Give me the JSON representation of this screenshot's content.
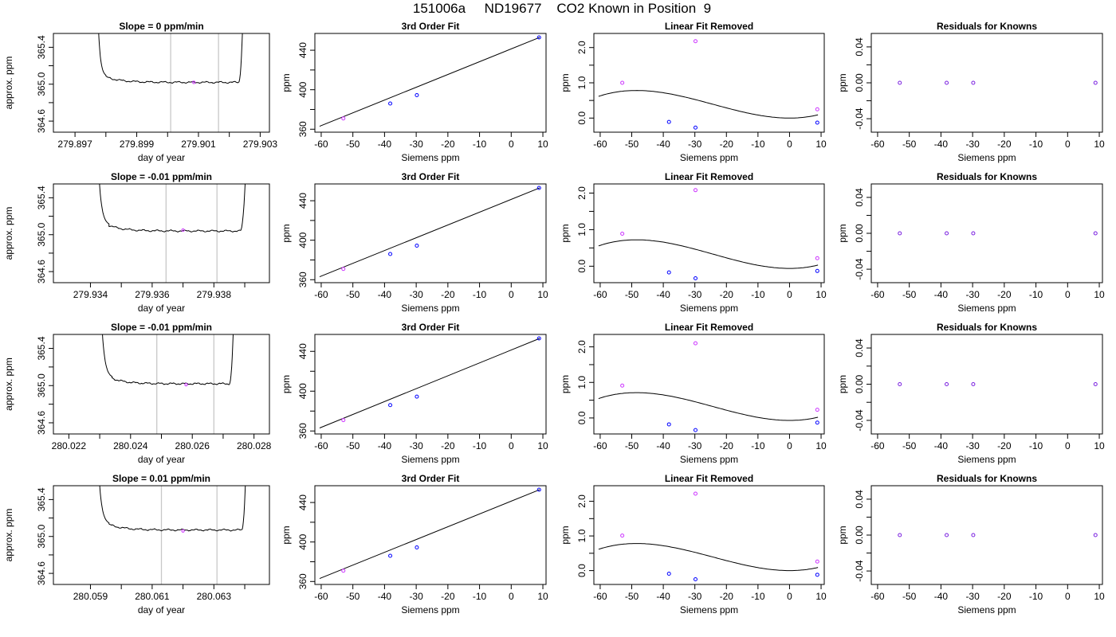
{
  "figure_title": "151006a     ND19677    CO2 Known in Position  9",
  "colors": {
    "blue": "#0000ff",
    "magenta": "#cc33ff",
    "purple": "#7a1fe0",
    "ref_line": "#c8c8c8",
    "ink": "#000000"
  },
  "chart_data": [
    {
      "row": 1,
      "type": "line",
      "title": "Slope =  0  ppm/min",
      "xlabel": "day of year",
      "ylabel": "approx. ppm",
      "xlim": [
        279.8963,
        279.9033
      ],
      "ylim": [
        364.48,
        365.55
      ],
      "xticks": [
        279.897,
        279.899,
        279.901,
        279.903
      ],
      "xtick_labels": [
        "279.897",
        "279.899",
        "279.901",
        "279.903"
      ],
      "yticks": [
        364.6,
        365.0,
        365.4
      ],
      "ytick_labels": [
        "364.6",
        "365.0",
        "365.4"
      ],
      "ref_lines_x": [
        279.9001,
        279.90165
      ],
      "series_start": 279.8977,
      "series_end": 279.90245,
      "plateau_start": 279.898,
      "plateau_end": 279.9023,
      "plateau_level": 365.02,
      "marker": {
        "x": 279.90085,
        "y": 365.02,
        "color": "#cc33ff"
      }
    },
    {
      "row": 1,
      "type": "scatter",
      "title": "3rd Order Fit",
      "xlabel": "Siemens ppm",
      "ylabel": "ppm",
      "xlim": [
        -62,
        11
      ],
      "ylim": [
        357,
        457
      ],
      "xticks": [
        -60,
        -50,
        -40,
        -30,
        -20,
        -10,
        0,
        10
      ],
      "xtick_labels": [
        "-60",
        "-50",
        "-40",
        "-30",
        "-20",
        "-10",
        "0",
        "10"
      ],
      "yticks": [
        360,
        400,
        440
      ],
      "ytick_labels": [
        "360",
        "400",
        "440"
      ],
      "points": [
        {
          "x": -53,
          "y": 370.9,
          "color": "#cc33ff"
        },
        {
          "x": -38.2,
          "y": 386.0,
          "color": "#0000ff"
        },
        {
          "x": -29.8,
          "y": 394.5,
          "color": "#0000ff"
        },
        {
          "x": 8.8,
          "y": 453.0,
          "color": "#0000ff"
        }
      ],
      "fit_line": {
        "x": [
          -60.5,
          9
        ],
        "y": [
          363.0,
          453.0
        ]
      }
    },
    {
      "row": 1,
      "type": "scatter",
      "title": "Linear Fit Removed",
      "xlabel": "Siemens ppm",
      "ylabel": "ppm",
      "xlim": [
        -62,
        11
      ],
      "ylim": [
        -0.4,
        2.4
      ],
      "xticks": [
        -60,
        -50,
        -40,
        -30,
        -20,
        -10,
        0,
        10
      ],
      "xtick_labels": [
        "-60",
        "-50",
        "-40",
        "-30",
        "-20",
        "-10",
        "0",
        "10"
      ],
      "yticks": [
        0.0,
        1.0,
        2.0
      ],
      "ytick_labels": [
        "0.0",
        "1.0",
        "2.0"
      ],
      "points": [
        {
          "x": -53,
          "y": 1.0,
          "color": "#cc33ff"
        },
        {
          "x": -38.2,
          "y": -0.11,
          "color": "#0000ff"
        },
        {
          "x": -29.8,
          "y": -0.27,
          "color": "#0000ff"
        },
        {
          "x": -29.8,
          "y": 2.18,
          "color": "#cc33ff"
        },
        {
          "x": 8.8,
          "y": 0.25,
          "color": "#cc33ff"
        },
        {
          "x": 8.8,
          "y": -0.13,
          "color": "#0000ff"
        }
      ],
      "curve": {
        "x_from": -60.5,
        "x_to": 9,
        "a": 1.37e-05,
        "b": 0.000997,
        "c": 0,
        "d": 0
      }
    },
    {
      "row": 1,
      "type": "scatter",
      "title": "Residuals for Knowns",
      "xlabel": "Siemens ppm",
      "ylabel": "ppm",
      "xlim": [
        -62,
        11
      ],
      "ylim": [
        -0.055,
        0.055
      ],
      "xticks": [
        -60,
        -50,
        -40,
        -30,
        -20,
        -10,
        0,
        10
      ],
      "xtick_labels": [
        "-60",
        "-50",
        "-40",
        "-30",
        "-20",
        "-10",
        "0",
        "10"
      ],
      "yticks": [
        -0.04,
        0.0,
        0.04
      ],
      "ytick_labels": [
        "-0.04",
        "0.00",
        "0.04"
      ],
      "points": [
        {
          "x": -53,
          "y": 0,
          "color": "#7a1fe0"
        },
        {
          "x": -38.2,
          "y": 0,
          "color": "#7a1fe0"
        },
        {
          "x": -29.8,
          "y": 0,
          "color": "#7a1fe0"
        },
        {
          "x": 8.8,
          "y": 0,
          "color": "#7a1fe0"
        }
      ]
    },
    {
      "row": 2,
      "type": "line",
      "title": "Slope =  -0.01  ppm/min",
      "xlabel": "day of year",
      "ylabel": "approx. ppm",
      "xlim": [
        279.9328,
        279.9398
      ],
      "ylim": [
        364.48,
        365.55
      ],
      "xticks": [
        279.934,
        279.936,
        279.938
      ],
      "xtick_labels": [
        "279.934",
        "279.936",
        "279.938"
      ],
      "yticks": [
        364.6,
        365.0,
        365.4
      ],
      "ytick_labels": [
        "364.6",
        "365.0",
        "365.4"
      ],
      "ref_lines_x": [
        279.93645,
        279.9381
      ],
      "series_start": 279.9342,
      "series_end": 279.93905,
      "plateau_start": 279.9346,
      "plateau_end": 279.93885,
      "plateau_level": 365.04,
      "marker": {
        "x": 279.937,
        "y": 365.05,
        "color": "#cc33ff"
      }
    },
    {
      "row": 2,
      "type": "scatter",
      "title": "3rd Order Fit",
      "xlabel": "Siemens ppm",
      "ylabel": "ppm",
      "xlim": [
        -62,
        11
      ],
      "ylim": [
        357,
        457
      ],
      "xticks": [
        -60,
        -50,
        -40,
        -30,
        -20,
        -10,
        0,
        10
      ],
      "xtick_labels": [
        "-60",
        "-50",
        "-40",
        "-30",
        "-20",
        "-10",
        "0",
        "10"
      ],
      "yticks": [
        360,
        400,
        440
      ],
      "ytick_labels": [
        "360",
        "400",
        "440"
      ],
      "points": [
        {
          "x": -53,
          "y": 370.9,
          "color": "#cc33ff"
        },
        {
          "x": -38.2,
          "y": 386.0,
          "color": "#0000ff"
        },
        {
          "x": -29.8,
          "y": 394.5,
          "color": "#0000ff"
        },
        {
          "x": 8.8,
          "y": 453.0,
          "color": "#0000ff"
        }
      ],
      "fit_line": {
        "x": [
          -60.5,
          9
        ],
        "y": [
          363.0,
          453.0
        ]
      }
    },
    {
      "row": 2,
      "type": "scatter",
      "title": "Linear Fit Removed",
      "xlabel": "Siemens ppm",
      "ylabel": "ppm",
      "xlim": [
        -62,
        11
      ],
      "ylim": [
        -0.45,
        2.25
      ],
      "xticks": [
        -60,
        -50,
        -40,
        -30,
        -20,
        -10,
        0,
        10
      ],
      "xtick_labels": [
        "-60",
        "-50",
        "-40",
        "-30",
        "-20",
        "-10",
        "0",
        "10"
      ],
      "yticks": [
        0.0,
        1.0,
        2.0
      ],
      "ytick_labels": [
        "0.0",
        "1.0",
        "2.0"
      ],
      "points": [
        {
          "x": -53,
          "y": 0.89,
          "color": "#cc33ff"
        },
        {
          "x": -38.2,
          "y": -0.17,
          "color": "#0000ff"
        },
        {
          "x": -29.8,
          "y": -0.33,
          "color": "#0000ff"
        },
        {
          "x": -29.8,
          "y": 2.08,
          "color": "#cc33ff"
        },
        {
          "x": 8.8,
          "y": 0.22,
          "color": "#cc33ff"
        },
        {
          "x": 8.8,
          "y": -0.13,
          "color": "#0000ff"
        }
      ],
      "curve": {
        "x_from": -60.5,
        "x_to": 9,
        "a": 1.37e-05,
        "b": 0.000997,
        "c": 0,
        "d": -0.06
      }
    },
    {
      "row": 2,
      "type": "scatter",
      "title": "Residuals for Knowns",
      "xlabel": "Siemens ppm",
      "ylabel": "ppm",
      "xlim": [
        -62,
        11
      ],
      "ylim": [
        -0.055,
        0.055
      ],
      "xticks": [
        -60,
        -50,
        -40,
        -30,
        -20,
        -10,
        0,
        10
      ],
      "xtick_labels": [
        "-60",
        "-50",
        "-40",
        "-30",
        "-20",
        "-10",
        "0",
        "10"
      ],
      "yticks": [
        -0.04,
        0.0,
        0.04
      ],
      "ytick_labels": [
        "-0.04",
        "0.00",
        "0.04"
      ],
      "points": [
        {
          "x": -53,
          "y": 0,
          "color": "#7a1fe0"
        },
        {
          "x": -38.2,
          "y": 0,
          "color": "#7a1fe0"
        },
        {
          "x": -29.8,
          "y": 0,
          "color": "#7a1fe0"
        },
        {
          "x": 8.8,
          "y": 0,
          "color": "#7a1fe0"
        }
      ]
    },
    {
      "row": 3,
      "type": "line",
      "title": "Slope =  -0.01  ppm/min",
      "xlabel": "day of year",
      "ylabel": "approx. ppm",
      "xlim": [
        280.0215,
        280.0285
      ],
      "ylim": [
        364.48,
        365.55
      ],
      "xticks": [
        280.022,
        280.024,
        280.026,
        280.028
      ],
      "xtick_labels": [
        "280.022",
        "280.024",
        "280.026",
        "280.028"
      ],
      "yticks": [
        364.6,
        365.0,
        365.4
      ],
      "ytick_labels": [
        "364.6",
        "365.0",
        "365.4"
      ],
      "ref_lines_x": [
        280.02485,
        280.0267
      ],
      "series_start": 280.023,
      "series_end": 280.02735,
      "plateau_start": 280.0234,
      "plateau_end": 280.0272,
      "plateau_level": 365.02,
      "marker": {
        "x": 280.0258,
        "y": 365.01,
        "color": "#cc33ff"
      }
    },
    {
      "row": 3,
      "type": "scatter",
      "title": "3rd Order Fit",
      "xlabel": "Siemens ppm",
      "ylabel": "ppm",
      "xlim": [
        -62,
        11
      ],
      "ylim": [
        357,
        457
      ],
      "xticks": [
        -60,
        -50,
        -40,
        -30,
        -20,
        -10,
        0,
        10
      ],
      "xtick_labels": [
        "-60",
        "-50",
        "-40",
        "-30",
        "-20",
        "-10",
        "0",
        "10"
      ],
      "yticks": [
        360,
        400,
        440
      ],
      "ytick_labels": [
        "360",
        "400",
        "440"
      ],
      "points": [
        {
          "x": -53,
          "y": 370.9,
          "color": "#cc33ff"
        },
        {
          "x": -38.2,
          "y": 386.0,
          "color": "#0000ff"
        },
        {
          "x": -29.8,
          "y": 394.5,
          "color": "#0000ff"
        },
        {
          "x": 8.8,
          "y": 453.0,
          "color": "#0000ff"
        }
      ],
      "fit_line": {
        "x": [
          -60.5,
          9
        ],
        "y": [
          363.0,
          453.0
        ]
      }
    },
    {
      "row": 3,
      "type": "scatter",
      "title": "Linear Fit Removed",
      "xlabel": "Siemens ppm",
      "ylabel": "ppm",
      "xlim": [
        -62,
        11
      ],
      "ylim": [
        -0.45,
        2.35
      ],
      "xticks": [
        -60,
        -50,
        -40,
        -30,
        -20,
        -10,
        0,
        10
      ],
      "xtick_labels": [
        "-60",
        "-50",
        "-40",
        "-30",
        "-20",
        "-10",
        "0",
        "10"
      ],
      "yticks": [
        0.0,
        1.0,
        2.0
      ],
      "ytick_labels": [
        "0.0",
        "1.0",
        "2.0"
      ],
      "points": [
        {
          "x": -53,
          "y": 0.91,
          "color": "#cc33ff"
        },
        {
          "x": -38.2,
          "y": -0.18,
          "color": "#0000ff"
        },
        {
          "x": -29.8,
          "y": -0.34,
          "color": "#0000ff"
        },
        {
          "x": -29.8,
          "y": 2.1,
          "color": "#cc33ff"
        },
        {
          "x": 8.8,
          "y": 0.23,
          "color": "#cc33ff"
        },
        {
          "x": 8.8,
          "y": -0.13,
          "color": "#0000ff"
        }
      ],
      "curve": {
        "x_from": -60.5,
        "x_to": 9,
        "a": 1.37e-05,
        "b": 0.000997,
        "c": 0,
        "d": -0.07
      }
    },
    {
      "row": 3,
      "type": "scatter",
      "title": "Residuals for Knowns",
      "xlabel": "Siemens ppm",
      "ylabel": "ppm",
      "xlim": [
        -62,
        11
      ],
      "ylim": [
        -0.055,
        0.055
      ],
      "xticks": [
        -60,
        -50,
        -40,
        -30,
        -20,
        -10,
        0,
        10
      ],
      "xtick_labels": [
        "-60",
        "-50",
        "-40",
        "-30",
        "-20",
        "-10",
        "0",
        "10"
      ],
      "yticks": [
        -0.04,
        0.0,
        0.04
      ],
      "ytick_labels": [
        "-0.04",
        "0.00",
        "0.04"
      ],
      "points": [
        {
          "x": -53,
          "y": 0,
          "color": "#7a1fe0"
        },
        {
          "x": -38.2,
          "y": 0,
          "color": "#7a1fe0"
        },
        {
          "x": -29.8,
          "y": 0,
          "color": "#7a1fe0"
        },
        {
          "x": 8.8,
          "y": 0,
          "color": "#7a1fe0"
        }
      ]
    },
    {
      "row": 4,
      "type": "line",
      "title": "Slope =  0.01  ppm/min",
      "xlabel": "day of year",
      "ylabel": "approx. ppm",
      "xlim": [
        280.0578,
        280.0648
      ],
      "ylim": [
        364.48,
        365.55
      ],
      "xticks": [
        280.059,
        280.061,
        280.063
      ],
      "xtick_labels": [
        "280.059",
        "280.061",
        "280.063"
      ],
      "yticks": [
        364.6,
        365.0,
        365.4
      ],
      "ytick_labels": [
        "364.6",
        "365.0",
        "365.4"
      ],
      "ref_lines_x": [
        280.0613,
        280.0631
      ],
      "series_start": 280.0592,
      "series_end": 280.06405,
      "plateau_start": 280.0596,
      "plateau_end": 280.0639,
      "plateau_level": 365.07,
      "marker": {
        "x": 280.062,
        "y": 365.06,
        "color": "#cc33ff"
      }
    },
    {
      "row": 4,
      "type": "scatter",
      "title": "3rd Order Fit",
      "xlabel": "Siemens ppm",
      "ylabel": "ppm",
      "xlim": [
        -62,
        11
      ],
      "ylim": [
        357,
        457
      ],
      "xticks": [
        -60,
        -50,
        -40,
        -30,
        -20,
        -10,
        0,
        10
      ],
      "xtick_labels": [
        "-60",
        "-50",
        "-40",
        "-30",
        "-20",
        "-10",
        "0",
        "10"
      ],
      "yticks": [
        360,
        400,
        440
      ],
      "ytick_labels": [
        "360",
        "400",
        "440"
      ],
      "points": [
        {
          "x": -53,
          "y": 370.9,
          "color": "#cc33ff"
        },
        {
          "x": -38.2,
          "y": 386.0,
          "color": "#0000ff"
        },
        {
          "x": -29.8,
          "y": 394.5,
          "color": "#0000ff"
        },
        {
          "x": 8.8,
          "y": 453.0,
          "color": "#0000ff"
        }
      ],
      "fit_line": {
        "x": [
          -60.5,
          9
        ],
        "y": [
          363.0,
          453.0
        ]
      }
    },
    {
      "row": 4,
      "type": "scatter",
      "title": "Linear Fit Removed",
      "xlabel": "Siemens ppm",
      "ylabel": "ppm",
      "xlim": [
        -62,
        11
      ],
      "ylim": [
        -0.4,
        2.45
      ],
      "xticks": [
        -60,
        -50,
        -40,
        -30,
        -20,
        -10,
        0,
        10
      ],
      "xtick_labels": [
        "-60",
        "-50",
        "-40",
        "-30",
        "-20",
        "-10",
        "0",
        "10"
      ],
      "yticks": [
        0.0,
        1.0,
        2.0
      ],
      "ytick_labels": [
        "0.0",
        "1.0",
        "2.0"
      ],
      "points": [
        {
          "x": -53,
          "y": 1.01,
          "color": "#cc33ff"
        },
        {
          "x": -38.2,
          "y": -0.09,
          "color": "#0000ff"
        },
        {
          "x": -29.8,
          "y": -0.25,
          "color": "#0000ff"
        },
        {
          "x": -29.8,
          "y": 2.22,
          "color": "#cc33ff"
        },
        {
          "x": 8.8,
          "y": 0.26,
          "color": "#cc33ff"
        },
        {
          "x": 8.8,
          "y": -0.12,
          "color": "#0000ff"
        }
      ],
      "curve": {
        "x_from": -60.5,
        "x_to": 9,
        "a": 1.37e-05,
        "b": 0.000997,
        "c": 0,
        "d": 0
      }
    },
    {
      "row": 4,
      "type": "scatter",
      "title": "Residuals for Knowns",
      "xlabel": "Siemens ppm",
      "ylabel": "ppm",
      "xlim": [
        -62,
        11
      ],
      "ylim": [
        -0.055,
        0.055
      ],
      "xticks": [
        -60,
        -50,
        -40,
        -30,
        -20,
        -10,
        0,
        10
      ],
      "xtick_labels": [
        "-60",
        "-50",
        "-40",
        "-30",
        "-20",
        "-10",
        "0",
        "10"
      ],
      "yticks": [
        -0.04,
        0.0,
        0.04
      ],
      "ytick_labels": [
        "-0.04",
        "0.00",
        "0.04"
      ],
      "points": [
        {
          "x": -53,
          "y": 0,
          "color": "#7a1fe0"
        },
        {
          "x": -38.2,
          "y": 0,
          "color": "#7a1fe0"
        },
        {
          "x": -29.8,
          "y": 0,
          "color": "#7a1fe0"
        },
        {
          "x": 8.8,
          "y": 0,
          "color": "#7a1fe0"
        }
      ]
    }
  ]
}
